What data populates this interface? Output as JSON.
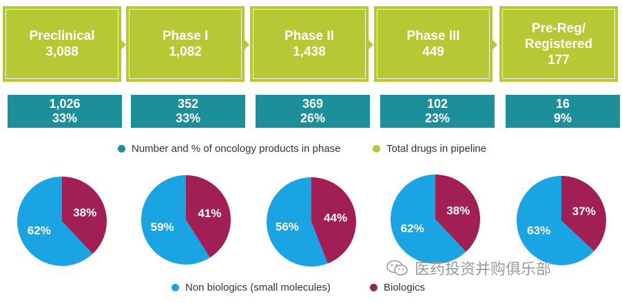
{
  "phases": [
    {
      "line1": "Preclinical",
      "line2": "",
      "total": "3,088",
      "onc_count": "1,026",
      "onc_pct": "33%"
    },
    {
      "line1": "Phase I",
      "line2": "",
      "total": "1,082",
      "onc_count": "352",
      "onc_pct": "33%"
    },
    {
      "line1": "Phase II",
      "line2": "",
      "total": "1,438",
      "onc_count": "369",
      "onc_pct": "26%"
    },
    {
      "line1": "Phase III",
      "line2": "",
      "total": "449",
      "onc_count": "102",
      "onc_pct": "23%"
    },
    {
      "line1": "Pre-Reg/",
      "line2": "Registered",
      "total": "177",
      "onc_count": "16",
      "onc_pct": "9%"
    }
  ],
  "legend_top": {
    "oncology": "Number and % of oncology products in phase",
    "total": "Total drugs in pipeline"
  },
  "legend_bottom": {
    "non_biologics": "Non biologics (small molecules)",
    "biologics": "Biologics"
  },
  "colors": {
    "lime": "#b5c934",
    "teal": "#1d8f9b",
    "non_biologics": "#1ba4e4",
    "biologics": "#a21f55"
  },
  "watermark": "医药投资并购俱乐部",
  "chart_data": {
    "type": "pie",
    "title": "",
    "categories": [
      "Non biologics (small molecules)",
      "Biologics"
    ],
    "pies": [
      {
        "phase": "Preclinical",
        "values": [
          62,
          38
        ],
        "labels": [
          "62%",
          "38%"
        ]
      },
      {
        "phase": "Phase I",
        "values": [
          59,
          41
        ],
        "labels": [
          "59%",
          "41%"
        ]
      },
      {
        "phase": "Phase II",
        "values": [
          56,
          44
        ],
        "labels": [
          "56%",
          "44%"
        ]
      },
      {
        "phase": "Phase III",
        "values": [
          62,
          38
        ],
        "labels": [
          "62%",
          "38%"
        ]
      },
      {
        "phase": "Pre-Reg/Registered",
        "values": [
          63,
          37
        ],
        "labels": [
          "63%",
          "37%"
        ]
      }
    ]
  }
}
